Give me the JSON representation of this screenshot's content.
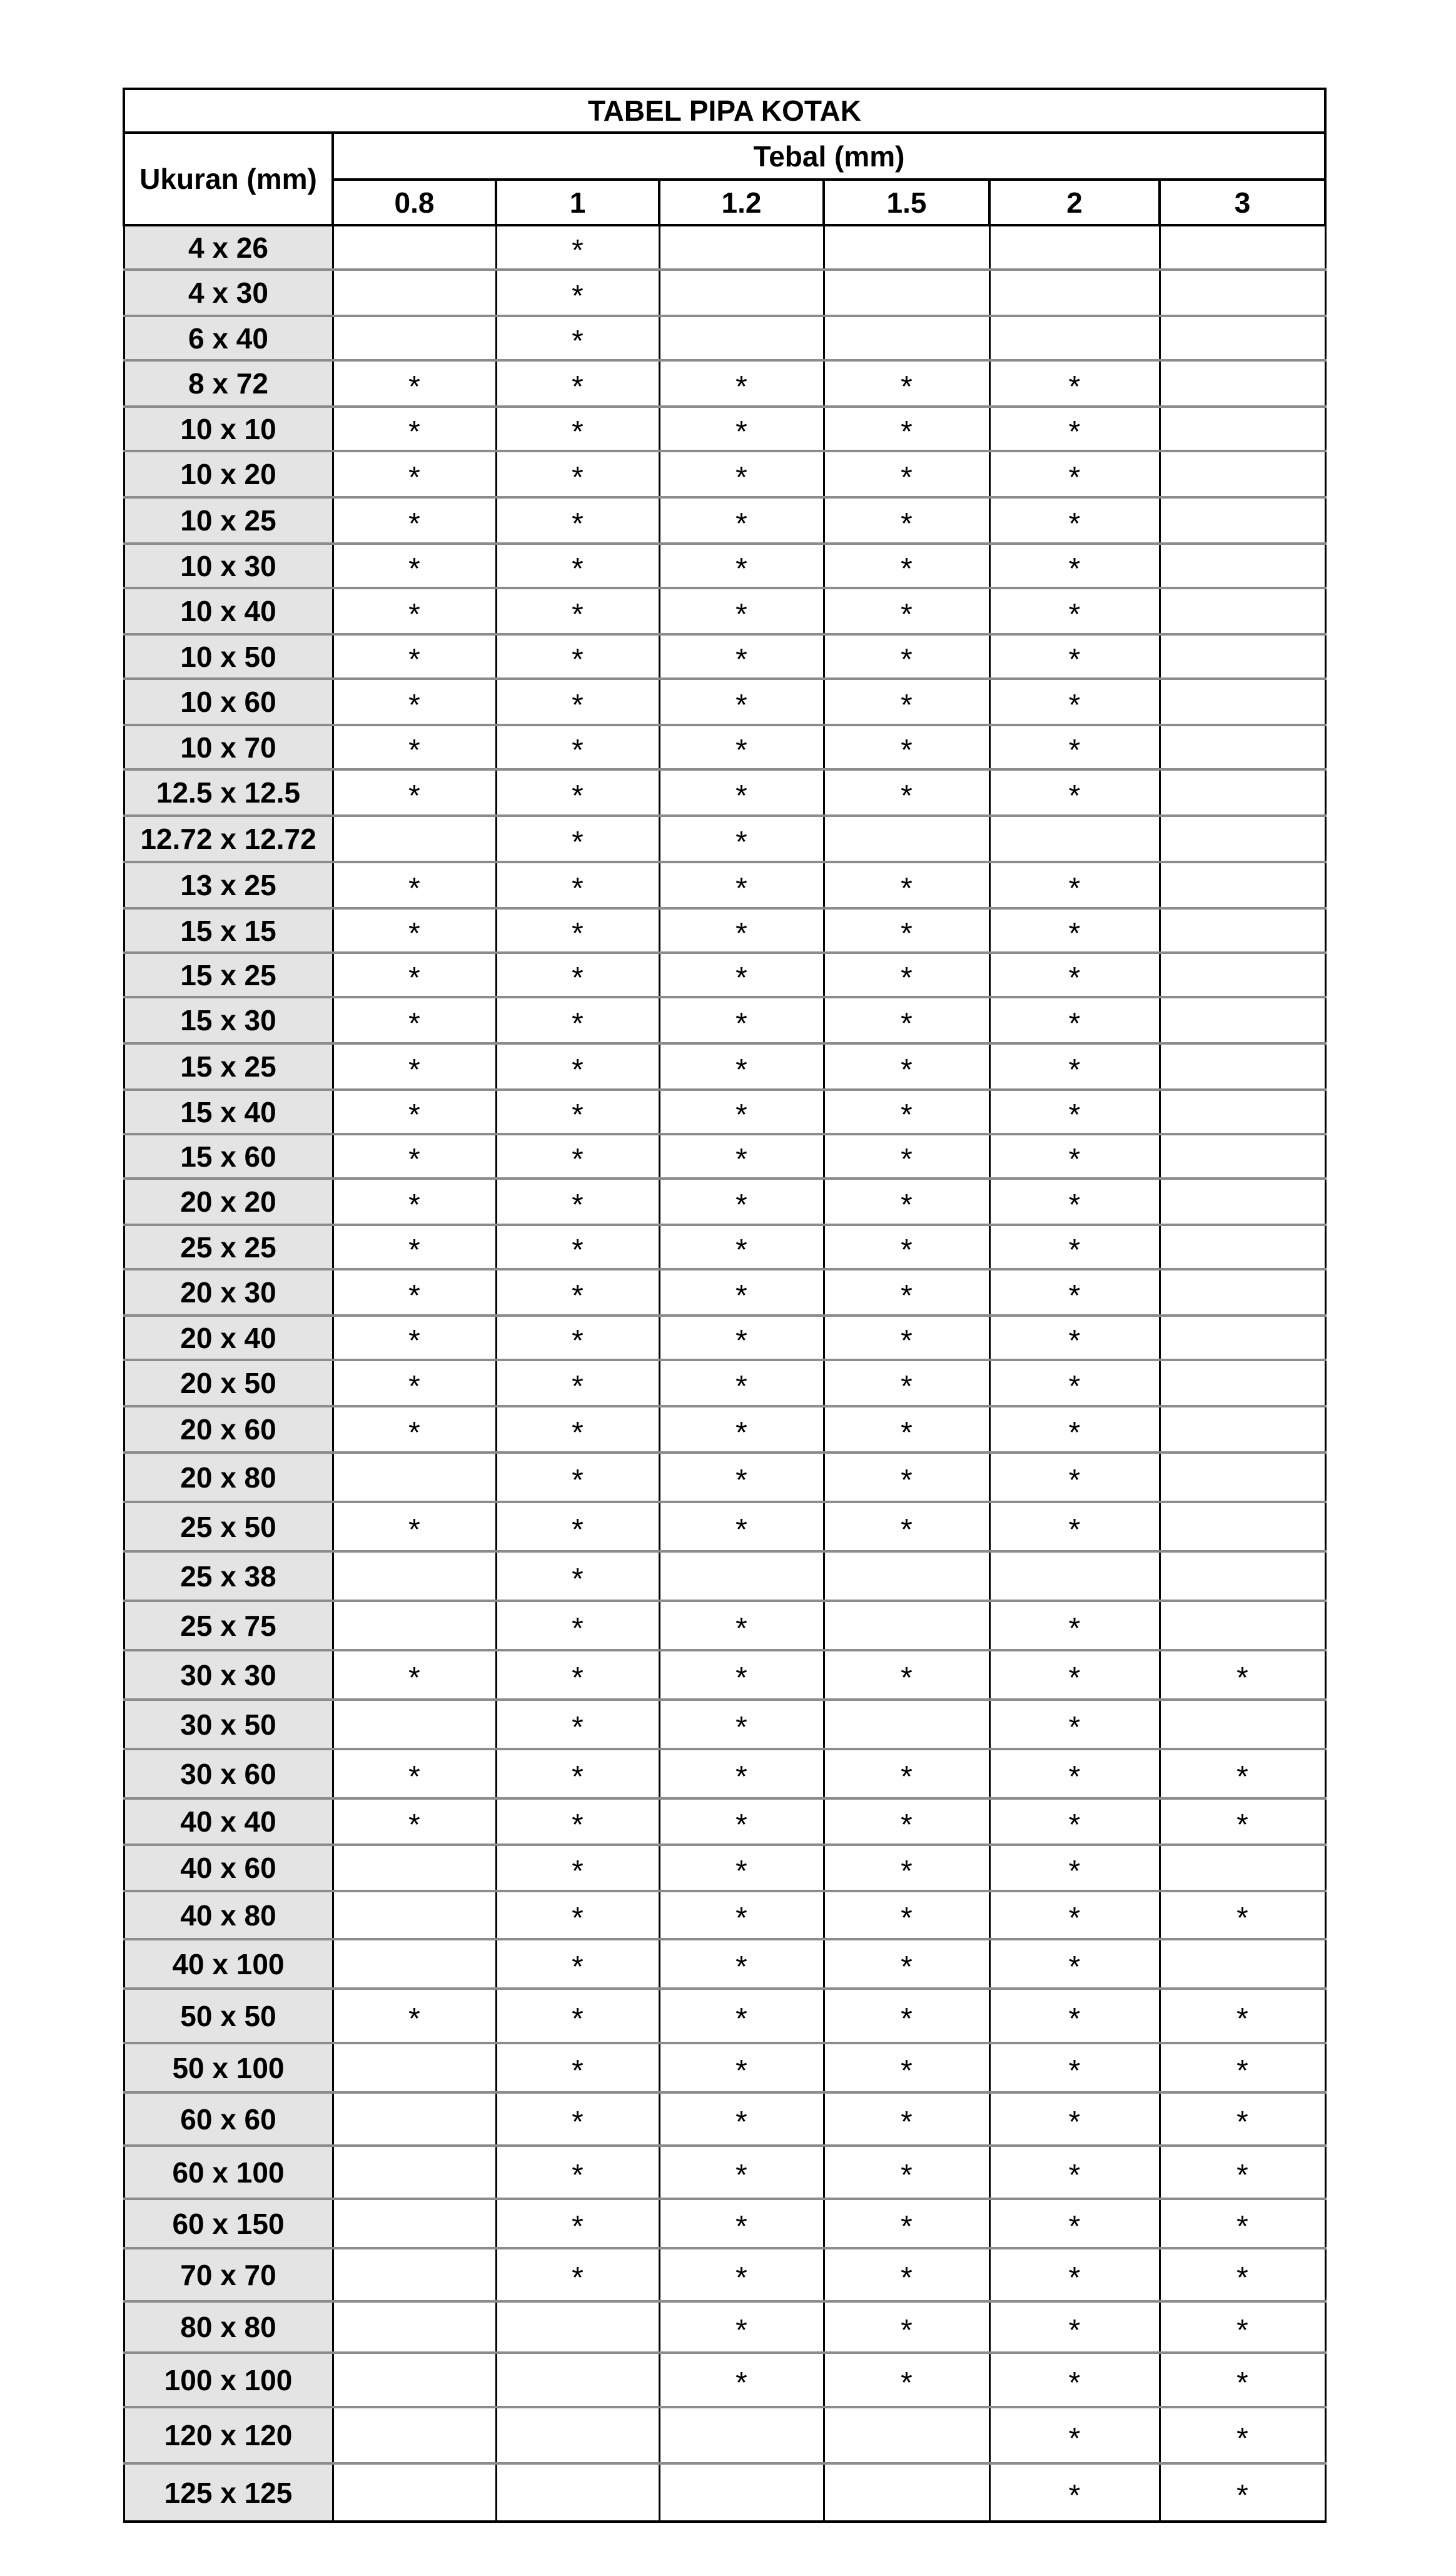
{
  "table": {
    "title": "TABEL PIPA KOTAK",
    "size_header": "Ukuran (mm)",
    "thickness_header": "Tebal (mm)",
    "thickness_columns": [
      "0.8",
      "1",
      "1.2",
      "1.5",
      "2",
      "3"
    ],
    "mark_symbol": "*",
    "header_cell_color": "#e4e4e4",
    "rows": [
      {
        "size": "4 x 26",
        "available": [
          0,
          1,
          0,
          0,
          0,
          0
        ]
      },
      {
        "size": "4 x 30",
        "available": [
          0,
          1,
          0,
          0,
          0,
          0
        ]
      },
      {
        "size": "6 x 40",
        "available": [
          0,
          1,
          0,
          0,
          0,
          0
        ]
      },
      {
        "size": "8 x 72",
        "available": [
          1,
          1,
          1,
          1,
          1,
          0
        ]
      },
      {
        "size": "10 x 10",
        "available": [
          1,
          1,
          1,
          1,
          1,
          0
        ]
      },
      {
        "size": "10 x 20",
        "available": [
          1,
          1,
          1,
          1,
          1,
          0
        ]
      },
      {
        "size": "10 x 25",
        "available": [
          1,
          1,
          1,
          1,
          1,
          0
        ]
      },
      {
        "size": "10 x 30",
        "available": [
          1,
          1,
          1,
          1,
          1,
          0
        ]
      },
      {
        "size": "10 x 40",
        "available": [
          1,
          1,
          1,
          1,
          1,
          0
        ]
      },
      {
        "size": "10 x 50",
        "available": [
          1,
          1,
          1,
          1,
          1,
          0
        ]
      },
      {
        "size": "10 x 60",
        "available": [
          1,
          1,
          1,
          1,
          1,
          0
        ]
      },
      {
        "size": "10 x 70",
        "available": [
          1,
          1,
          1,
          1,
          1,
          0
        ]
      },
      {
        "size": "12.5 x 12.5",
        "available": [
          1,
          1,
          1,
          1,
          1,
          0
        ]
      },
      {
        "size": "12.72 x 12.72",
        "available": [
          0,
          1,
          1,
          0,
          0,
          0
        ]
      },
      {
        "size": "13 x 25",
        "available": [
          1,
          1,
          1,
          1,
          1,
          0
        ]
      },
      {
        "size": "15 x 15",
        "available": [
          1,
          1,
          1,
          1,
          1,
          0
        ]
      },
      {
        "size": "15 x 25",
        "available": [
          1,
          1,
          1,
          1,
          1,
          0
        ]
      },
      {
        "size": "15 x 30",
        "available": [
          1,
          1,
          1,
          1,
          1,
          0
        ]
      },
      {
        "size": "15 x 25",
        "available": [
          1,
          1,
          1,
          1,
          1,
          0
        ]
      },
      {
        "size": "15 x 40",
        "available": [
          1,
          1,
          1,
          1,
          1,
          0
        ]
      },
      {
        "size": "15 x 60",
        "available": [
          1,
          1,
          1,
          1,
          1,
          0
        ]
      },
      {
        "size": "20 x 20",
        "available": [
          1,
          1,
          1,
          1,
          1,
          0
        ]
      },
      {
        "size": "25 x 25",
        "available": [
          1,
          1,
          1,
          1,
          1,
          0
        ]
      },
      {
        "size": "20 x 30",
        "available": [
          1,
          1,
          1,
          1,
          1,
          0
        ]
      },
      {
        "size": "20 x 40",
        "available": [
          1,
          1,
          1,
          1,
          1,
          0
        ]
      },
      {
        "size": "20 x 50",
        "available": [
          1,
          1,
          1,
          1,
          1,
          0
        ]
      },
      {
        "size": "20 x 60",
        "available": [
          1,
          1,
          1,
          1,
          1,
          0
        ]
      },
      {
        "size": "20 x 80",
        "available": [
          0,
          1,
          1,
          1,
          1,
          0
        ]
      },
      {
        "size": "25 x 50",
        "available": [
          1,
          1,
          1,
          1,
          1,
          0
        ]
      },
      {
        "size": "25 x 38",
        "available": [
          0,
          1,
          0,
          0,
          0,
          0
        ]
      },
      {
        "size": "25 x 75",
        "available": [
          0,
          1,
          1,
          0,
          1,
          0
        ]
      },
      {
        "size": "30 x 30",
        "available": [
          1,
          1,
          1,
          1,
          1,
          1
        ]
      },
      {
        "size": "30 x 50",
        "available": [
          0,
          1,
          1,
          0,
          1,
          0
        ]
      },
      {
        "size": "30 x 60",
        "available": [
          1,
          1,
          1,
          1,
          1,
          1
        ]
      },
      {
        "size": "40 x 40",
        "available": [
          1,
          1,
          1,
          1,
          1,
          1
        ]
      },
      {
        "size": "40 x 60",
        "available": [
          0,
          1,
          1,
          1,
          1,
          0
        ]
      },
      {
        "size": "40 x 80",
        "available": [
          0,
          1,
          1,
          1,
          1,
          1
        ]
      },
      {
        "size": "40 x 100",
        "available": [
          0,
          1,
          1,
          1,
          1,
          0
        ]
      },
      {
        "size": "50 x 50",
        "available": [
          1,
          1,
          1,
          1,
          1,
          1
        ]
      },
      {
        "size": "50 x 100",
        "available": [
          0,
          1,
          1,
          1,
          1,
          1
        ]
      },
      {
        "size": "60 x 60",
        "available": [
          0,
          1,
          1,
          1,
          1,
          1
        ]
      },
      {
        "size": "60 x 100",
        "available": [
          0,
          1,
          1,
          1,
          1,
          1
        ]
      },
      {
        "size": "60 x 150",
        "available": [
          0,
          1,
          1,
          1,
          1,
          1
        ]
      },
      {
        "size": "70 x 70",
        "available": [
          0,
          1,
          1,
          1,
          1,
          1
        ]
      },
      {
        "size": "80 x 80",
        "available": [
          0,
          0,
          1,
          1,
          1,
          1
        ]
      },
      {
        "size": "100 x 100",
        "available": [
          0,
          0,
          1,
          1,
          1,
          1
        ]
      },
      {
        "size": "120 x 120",
        "available": [
          0,
          0,
          0,
          0,
          1,
          1
        ]
      },
      {
        "size": "125 x 125",
        "available": [
          0,
          0,
          0,
          0,
          1,
          1
        ]
      }
    ]
  }
}
